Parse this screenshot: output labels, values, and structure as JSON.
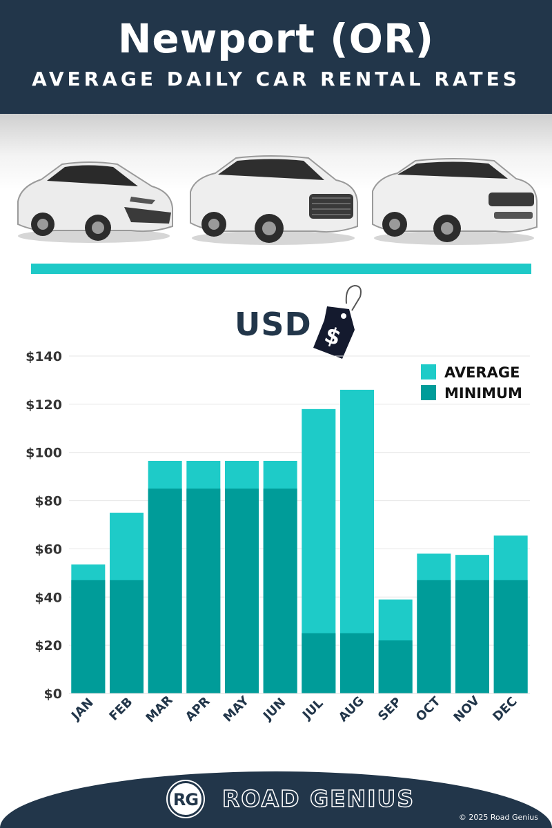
{
  "header": {
    "title": "Newport (OR)",
    "subtitle": "AVERAGE DAILY CAR RENTAL RATES"
  },
  "currency_label": "USD",
  "chart_data": {
    "type": "bar",
    "stacking": "overlay",
    "categories": [
      "JAN",
      "FEB",
      "MAR",
      "APR",
      "MAY",
      "JUN",
      "JUL",
      "AUG",
      "SEP",
      "OCT",
      "NOV",
      "DEC"
    ],
    "series": [
      {
        "name": "AVERAGE",
        "color": "#1ecbc8",
        "values": [
          53.5,
          75,
          96.5,
          96.5,
          96.5,
          96.5,
          118,
          126,
          39,
          58,
          57.5,
          65.5
        ]
      },
      {
        "name": "MINIMUM",
        "color": "#009c99",
        "values": [
          47,
          47,
          85,
          85,
          85,
          85,
          25,
          25,
          22,
          47,
          47,
          47
        ]
      }
    ],
    "y_ticks": [
      0,
      20,
      40,
      60,
      80,
      100,
      120,
      140
    ],
    "y_tick_labels": [
      "$0",
      "$20",
      "$40",
      "$60",
      "$80",
      "$100",
      "$120",
      "$140"
    ],
    "ylim": [
      0,
      140
    ],
    "grid": true,
    "legend_position": "top-right"
  },
  "footer": {
    "brand": "ROAD GENIUS",
    "logo_monogram": "RG",
    "copyright": "© 2025 Road Genius"
  },
  "colors": {
    "navy": "#22364a",
    "accent_teal": "#1ec9c7",
    "average": "#1ecbc8",
    "minimum": "#009c99"
  }
}
